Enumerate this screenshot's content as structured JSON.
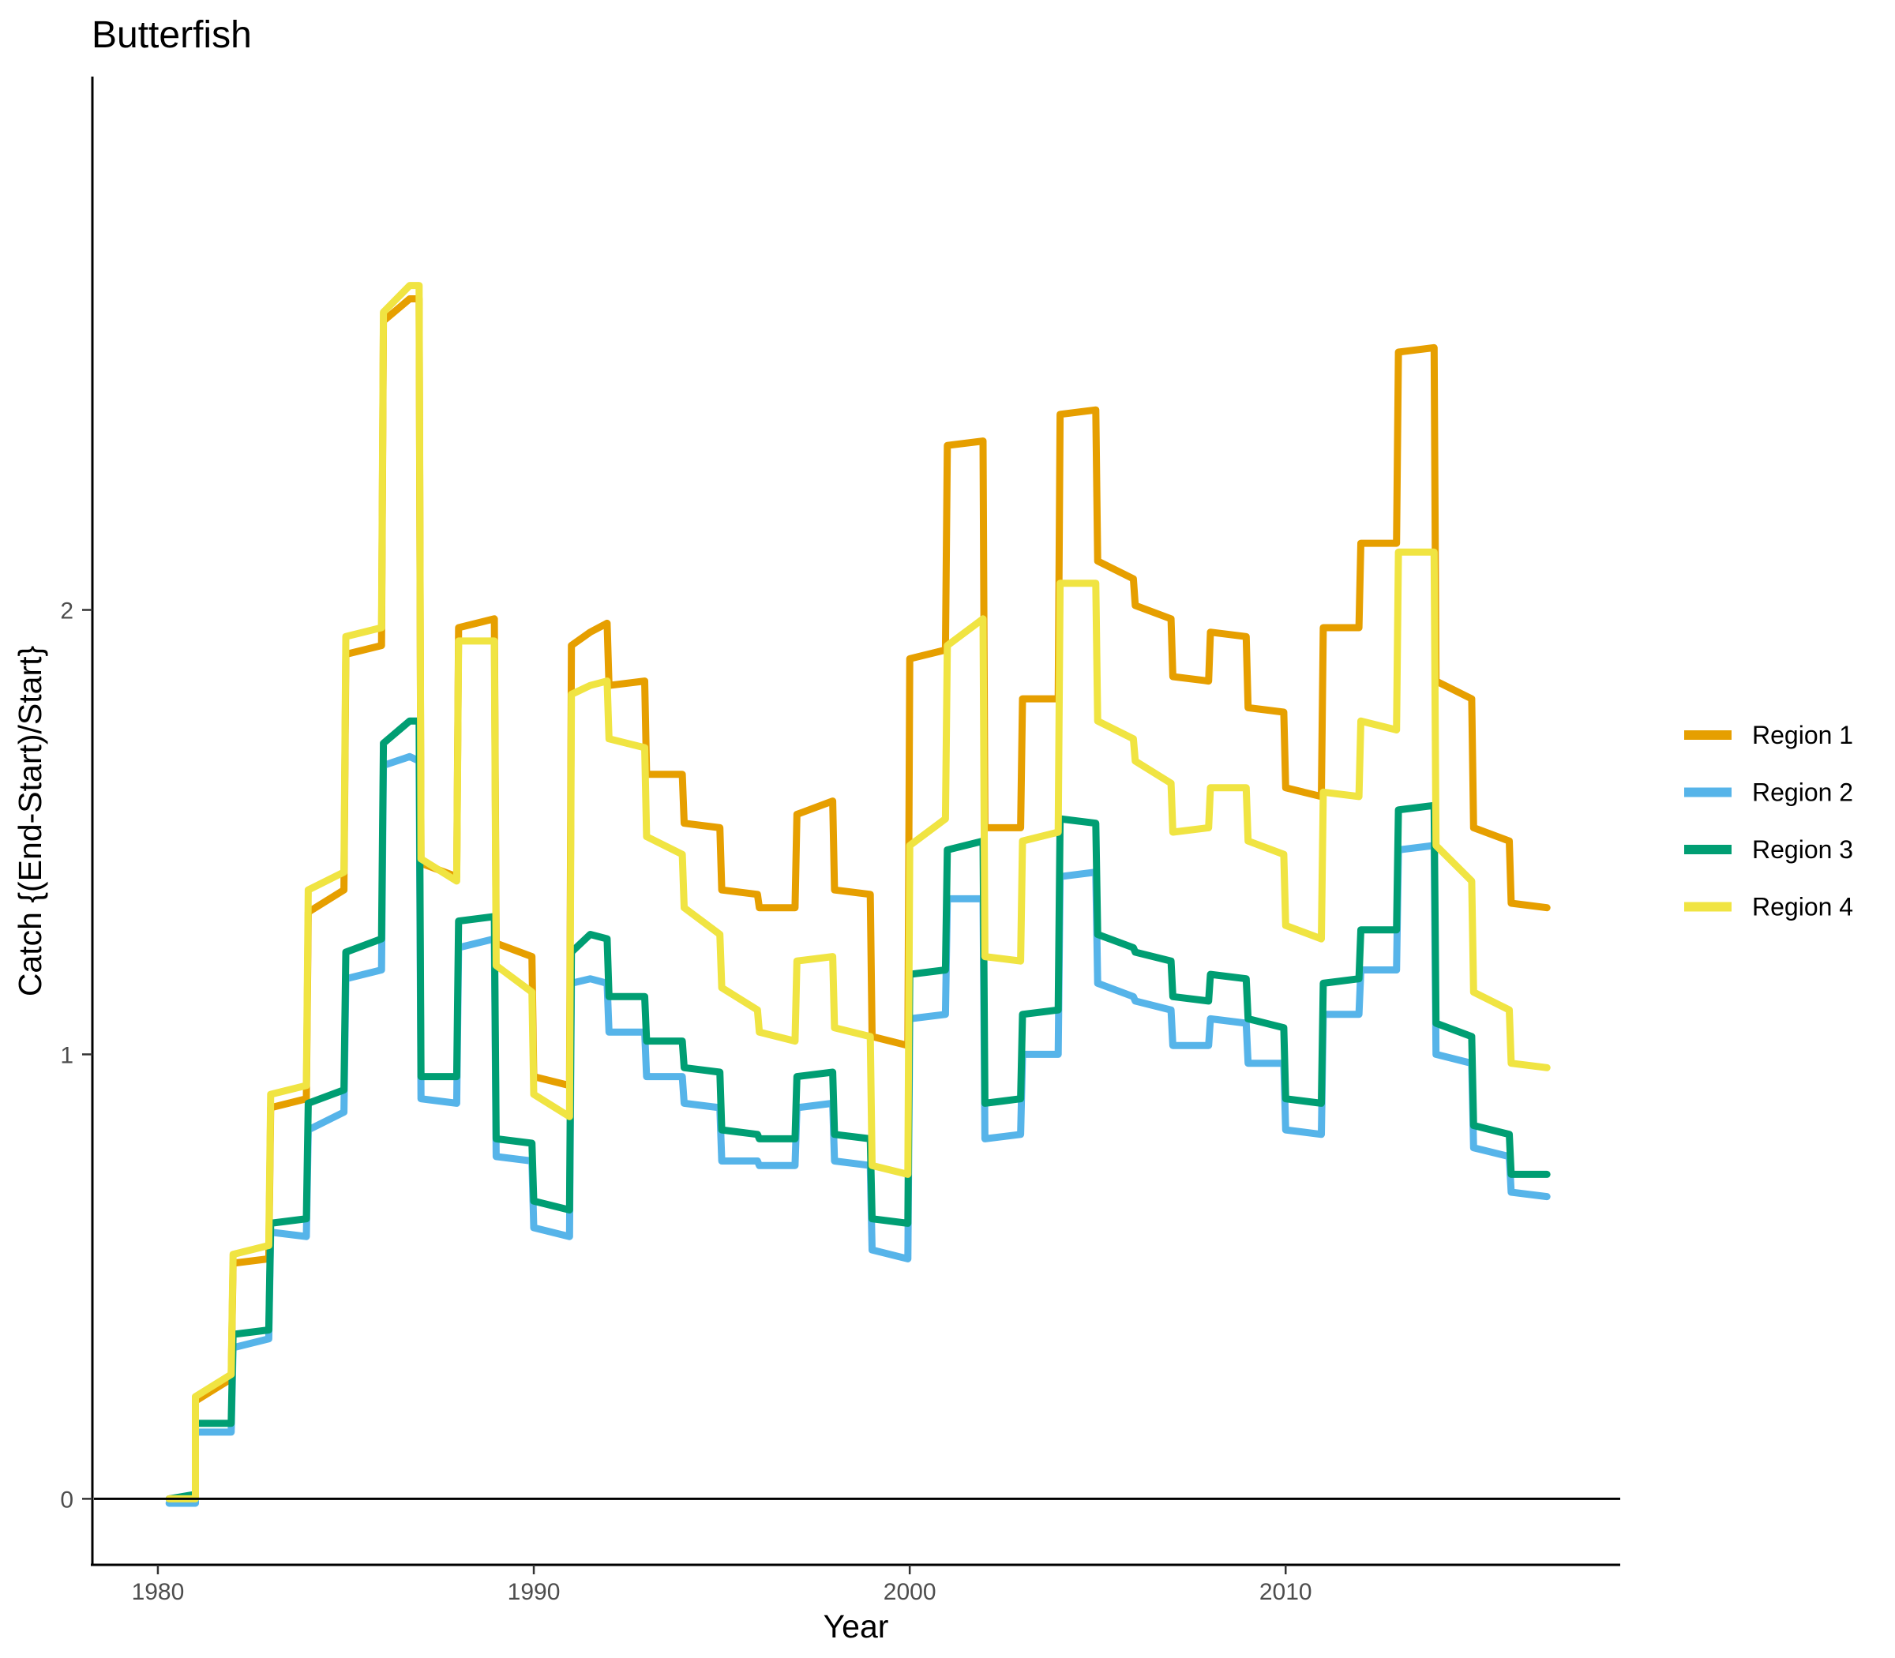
{
  "chart_data": {
    "type": "line",
    "title": "Butterfish",
    "xlabel": "Year",
    "ylabel": "Catch {(End-Start)/Start}",
    "xlim": [
      1978.3,
      2018.9
    ],
    "ylim": [
      -0.145,
      3.2
    ],
    "x_ticks": [
      1980,
      1990,
      2000,
      2010
    ],
    "x_tick_labels": [
      "1980",
      "1990",
      "2000",
      "2010"
    ],
    "y_ticks": [
      0,
      1,
      2
    ],
    "y_tick_labels": [
      "0",
      "1",
      "2"
    ],
    "reference_line_y": 0,
    "grid": false,
    "legend_position": "right",
    "series": [
      {
        "name": "Region 1",
        "color": "#E69F00",
        "points": [
          [
            1980.3,
            0.0
          ],
          [
            1981.0,
            0.0
          ],
          [
            1981.0,
            0.22
          ],
          [
            1981.95,
            0.27
          ],
          [
            1982.0,
            0.53
          ],
          [
            1982.95,
            0.54
          ],
          [
            1983.0,
            0.88
          ],
          [
            1983.95,
            0.9
          ],
          [
            1984.0,
            1.32
          ],
          [
            1984.95,
            1.37
          ],
          [
            1985.0,
            1.9
          ],
          [
            1985.95,
            1.92
          ],
          [
            1986.0,
            2.65
          ],
          [
            1986.7,
            2.7
          ],
          [
            1986.95,
            2.7
          ],
          [
            1987.0,
            1.43
          ],
          [
            1987.95,
            1.4
          ],
          [
            1988.0,
            1.96
          ],
          [
            1988.95,
            1.98
          ],
          [
            1989.0,
            1.25
          ],
          [
            1989.95,
            1.22
          ],
          [
            1990.0,
            0.95
          ],
          [
            1990.95,
            0.93
          ],
          [
            1991.0,
            1.92
          ],
          [
            1991.5,
            1.95
          ],
          [
            1991.95,
            1.97
          ],
          [
            1992.0,
            1.83
          ],
          [
            1992.95,
            1.84
          ],
          [
            1993.0,
            1.63
          ],
          [
            1993.95,
            1.63
          ],
          [
            1994.0,
            1.52
          ],
          [
            1994.95,
            1.51
          ],
          [
            1995.0,
            1.37
          ],
          [
            1995.95,
            1.36
          ],
          [
            1996.0,
            1.33
          ],
          [
            1996.95,
            1.33
          ],
          [
            1997.0,
            1.54
          ],
          [
            1997.95,
            1.57
          ],
          [
            1998.0,
            1.37
          ],
          [
            1998.95,
            1.36
          ],
          [
            1999.0,
            1.04
          ],
          [
            1999.95,
            1.02
          ],
          [
            2000.0,
            1.89
          ],
          [
            2000.95,
            1.91
          ],
          [
            2001.0,
            2.37
          ],
          [
            2001.95,
            2.38
          ],
          [
            2002.0,
            1.51
          ],
          [
            2002.95,
            1.51
          ],
          [
            2003.0,
            1.8
          ],
          [
            2003.95,
            1.8
          ],
          [
            2004.0,
            2.44
          ],
          [
            2004.95,
            2.45
          ],
          [
            2005.0,
            2.11
          ],
          [
            2005.95,
            2.07
          ],
          [
            2006.0,
            2.01
          ],
          [
            2006.95,
            1.98
          ],
          [
            2007.0,
            1.85
          ],
          [
            2007.95,
            1.84
          ],
          [
            2008.0,
            1.95
          ],
          [
            2008.95,
            1.94
          ],
          [
            2009.0,
            1.78
          ],
          [
            2009.95,
            1.77
          ],
          [
            2010.0,
            1.6
          ],
          [
            2010.95,
            1.58
          ],
          [
            2011.0,
            1.96
          ],
          [
            2011.95,
            1.96
          ],
          [
            2012.0,
            2.15
          ],
          [
            2012.95,
            2.15
          ],
          [
            2013.0,
            2.58
          ],
          [
            2013.95,
            2.59
          ],
          [
            2014.0,
            1.84
          ],
          [
            2014.95,
            1.8
          ],
          [
            2015.0,
            1.51
          ],
          [
            2015.95,
            1.48
          ],
          [
            2016.0,
            1.34
          ],
          [
            2016.95,
            1.33
          ]
        ]
      },
      {
        "name": "Region 2",
        "color": "#56B4E9",
        "points": [
          [
            1980.3,
            -0.01
          ],
          [
            1981.0,
            -0.01
          ],
          [
            1981.0,
            0.15
          ],
          [
            1981.95,
            0.15
          ],
          [
            1982.0,
            0.34
          ],
          [
            1982.95,
            0.36
          ],
          [
            1983.0,
            0.6
          ],
          [
            1983.95,
            0.59
          ],
          [
            1984.0,
            0.83
          ],
          [
            1984.95,
            0.87
          ],
          [
            1985.0,
            1.17
          ],
          [
            1985.95,
            1.19
          ],
          [
            1986.0,
            1.65
          ],
          [
            1986.7,
            1.67
          ],
          [
            1986.95,
            1.66
          ],
          [
            1987.0,
            0.9
          ],
          [
            1987.95,
            0.89
          ],
          [
            1988.0,
            1.24
          ],
          [
            1988.95,
            1.26
          ],
          [
            1989.0,
            0.77
          ],
          [
            1989.95,
            0.76
          ],
          [
            1990.0,
            0.61
          ],
          [
            1990.95,
            0.59
          ],
          [
            1991.0,
            1.16
          ],
          [
            1991.5,
            1.17
          ],
          [
            1991.95,
            1.16
          ],
          [
            1992.0,
            1.05
          ],
          [
            1992.95,
            1.05
          ],
          [
            1993.0,
            0.95
          ],
          [
            1993.95,
            0.95
          ],
          [
            1994.0,
            0.89
          ],
          [
            1994.95,
            0.88
          ],
          [
            1995.0,
            0.76
          ],
          [
            1995.95,
            0.76
          ],
          [
            1996.0,
            0.75
          ],
          [
            1996.95,
            0.75
          ],
          [
            1997.0,
            0.88
          ],
          [
            1997.95,
            0.89
          ],
          [
            1998.0,
            0.76
          ],
          [
            1998.95,
            0.75
          ],
          [
            1999.0,
            0.56
          ],
          [
            1999.95,
            0.54
          ],
          [
            2000.0,
            1.08
          ],
          [
            2000.95,
            1.09
          ],
          [
            2001.0,
            1.35
          ],
          [
            2001.95,
            1.35
          ],
          [
            2002.0,
            0.81
          ],
          [
            2002.95,
            0.82
          ],
          [
            2003.0,
            1.0
          ],
          [
            2003.95,
            1.0
          ],
          [
            2004.0,
            1.4
          ],
          [
            2004.95,
            1.41
          ],
          [
            2005.0,
            1.16
          ],
          [
            2005.95,
            1.13
          ],
          [
            2006.0,
            1.12
          ],
          [
            2006.95,
            1.1
          ],
          [
            2007.0,
            1.02
          ],
          [
            2007.95,
            1.02
          ],
          [
            2008.0,
            1.08
          ],
          [
            2008.95,
            1.07
          ],
          [
            2009.0,
            0.98
          ],
          [
            2009.95,
            0.98
          ],
          [
            2010.0,
            0.83
          ],
          [
            2010.95,
            0.82
          ],
          [
            2011.0,
            1.09
          ],
          [
            2011.95,
            1.09
          ],
          [
            2012.0,
            1.19
          ],
          [
            2012.95,
            1.19
          ],
          [
            2013.0,
            1.46
          ],
          [
            2013.95,
            1.47
          ],
          [
            2014.0,
            1.0
          ],
          [
            2014.95,
            0.98
          ],
          [
            2015.0,
            0.79
          ],
          [
            2015.95,
            0.77
          ],
          [
            2016.0,
            0.69
          ],
          [
            2016.95,
            0.68
          ]
        ]
      },
      {
        "name": "Region 3",
        "color": "#009E73",
        "points": [
          [
            1980.3,
            0.0
          ],
          [
            1981.0,
            0.01
          ],
          [
            1981.0,
            0.17
          ],
          [
            1981.95,
            0.17
          ],
          [
            1982.0,
            0.37
          ],
          [
            1982.95,
            0.38
          ],
          [
            1983.0,
            0.62
          ],
          [
            1983.95,
            0.63
          ],
          [
            1984.0,
            0.89
          ],
          [
            1984.95,
            0.92
          ],
          [
            1985.0,
            1.23
          ],
          [
            1985.95,
            1.26
          ],
          [
            1986.0,
            1.7
          ],
          [
            1986.7,
            1.75
          ],
          [
            1986.95,
            1.75
          ],
          [
            1987.0,
            0.95
          ],
          [
            1987.95,
            0.95
          ],
          [
            1988.0,
            1.3
          ],
          [
            1988.95,
            1.31
          ],
          [
            1989.0,
            0.81
          ],
          [
            1989.95,
            0.8
          ],
          [
            1990.0,
            0.67
          ],
          [
            1990.95,
            0.65
          ],
          [
            1991.0,
            1.23
          ],
          [
            1991.5,
            1.27
          ],
          [
            1991.95,
            1.26
          ],
          [
            1992.0,
            1.13
          ],
          [
            1992.95,
            1.13
          ],
          [
            1993.0,
            1.03
          ],
          [
            1993.95,
            1.03
          ],
          [
            1994.0,
            0.97
          ],
          [
            1994.95,
            0.96
          ],
          [
            1995.0,
            0.83
          ],
          [
            1995.95,
            0.82
          ],
          [
            1996.0,
            0.81
          ],
          [
            1996.95,
            0.81
          ],
          [
            1997.0,
            0.95
          ],
          [
            1997.95,
            0.96
          ],
          [
            1998.0,
            0.82
          ],
          [
            1998.95,
            0.81
          ],
          [
            1999.0,
            0.63
          ],
          [
            1999.95,
            0.62
          ],
          [
            2000.0,
            1.18
          ],
          [
            2000.95,
            1.19
          ],
          [
            2001.0,
            1.46
          ],
          [
            2001.95,
            1.48
          ],
          [
            2002.0,
            0.89
          ],
          [
            2002.95,
            0.9
          ],
          [
            2003.0,
            1.09
          ],
          [
            2003.95,
            1.1
          ],
          [
            2004.0,
            1.53
          ],
          [
            2004.95,
            1.52
          ],
          [
            2005.0,
            1.27
          ],
          [
            2005.95,
            1.24
          ],
          [
            2006.0,
            1.23
          ],
          [
            2006.95,
            1.21
          ],
          [
            2007.0,
            1.13
          ],
          [
            2007.95,
            1.12
          ],
          [
            2008.0,
            1.18
          ],
          [
            2008.95,
            1.17
          ],
          [
            2009.0,
            1.08
          ],
          [
            2009.95,
            1.06
          ],
          [
            2010.0,
            0.9
          ],
          [
            2010.95,
            0.89
          ],
          [
            2011.0,
            1.16
          ],
          [
            2011.95,
            1.17
          ],
          [
            2012.0,
            1.28
          ],
          [
            2012.95,
            1.28
          ],
          [
            2013.0,
            1.55
          ],
          [
            2013.95,
            1.56
          ],
          [
            2014.0,
            1.07
          ],
          [
            2014.95,
            1.04
          ],
          [
            2015.0,
            0.84
          ],
          [
            2015.95,
            0.82
          ],
          [
            2016.0,
            0.73
          ],
          [
            2016.95,
            0.73
          ]
        ]
      },
      {
        "name": "Region 4",
        "color": "#F0E442",
        "points": [
          [
            1980.3,
            0.0
          ],
          [
            1981.0,
            0.0
          ],
          [
            1981.0,
            0.23
          ],
          [
            1981.95,
            0.28
          ],
          [
            1982.0,
            0.55
          ],
          [
            1982.95,
            0.57
          ],
          [
            1983.0,
            0.91
          ],
          [
            1983.95,
            0.93
          ],
          [
            1984.0,
            1.37
          ],
          [
            1984.95,
            1.41
          ],
          [
            1985.0,
            1.94
          ],
          [
            1985.95,
            1.96
          ],
          [
            1986.0,
            2.67
          ],
          [
            1986.7,
            2.73
          ],
          [
            1986.95,
            2.73
          ],
          [
            1987.0,
            1.44
          ],
          [
            1987.95,
            1.39
          ],
          [
            1988.0,
            1.93
          ],
          [
            1988.95,
            1.93
          ],
          [
            1989.0,
            1.2
          ],
          [
            1989.95,
            1.14
          ],
          [
            1990.0,
            0.91
          ],
          [
            1990.95,
            0.86
          ],
          [
            1991.0,
            1.81
          ],
          [
            1991.5,
            1.83
          ],
          [
            1991.95,
            1.84
          ],
          [
            1992.0,
            1.71
          ],
          [
            1992.95,
            1.69
          ],
          [
            1993.0,
            1.49
          ],
          [
            1993.95,
            1.45
          ],
          [
            1994.0,
            1.33
          ],
          [
            1994.95,
            1.27
          ],
          [
            1995.0,
            1.15
          ],
          [
            1995.95,
            1.1
          ],
          [
            1996.0,
            1.05
          ],
          [
            1996.95,
            1.03
          ],
          [
            1997.0,
            1.21
          ],
          [
            1997.95,
            1.22
          ],
          [
            1998.0,
            1.06
          ],
          [
            1998.95,
            1.04
          ],
          [
            1999.0,
            0.75
          ],
          [
            1999.95,
            0.73
          ],
          [
            2000.0,
            1.47
          ],
          [
            2000.95,
            1.53
          ],
          [
            2001.0,
            1.92
          ],
          [
            2001.95,
            1.98
          ],
          [
            2002.0,
            1.22
          ],
          [
            2002.95,
            1.21
          ],
          [
            2003.0,
            1.48
          ],
          [
            2003.95,
            1.5
          ],
          [
            2004.0,
            2.06
          ],
          [
            2004.95,
            2.06
          ],
          [
            2005.0,
            1.75
          ],
          [
            2005.95,
            1.71
          ],
          [
            2006.0,
            1.66
          ],
          [
            2006.95,
            1.61
          ],
          [
            2007.0,
            1.5
          ],
          [
            2007.95,
            1.51
          ],
          [
            2008.0,
            1.6
          ],
          [
            2008.95,
            1.6
          ],
          [
            2009.0,
            1.48
          ],
          [
            2009.95,
            1.45
          ],
          [
            2010.0,
            1.29
          ],
          [
            2010.95,
            1.26
          ],
          [
            2011.0,
            1.59
          ],
          [
            2011.95,
            1.58
          ],
          [
            2012.0,
            1.75
          ],
          [
            2012.95,
            1.73
          ],
          [
            2013.0,
            2.13
          ],
          [
            2013.95,
            2.13
          ],
          [
            2014.0,
            1.47
          ],
          [
            2014.95,
            1.39
          ],
          [
            2015.0,
            1.14
          ],
          [
            2015.95,
            1.1
          ],
          [
            2016.0,
            0.98
          ],
          [
            2016.95,
            0.97
          ]
        ]
      }
    ]
  }
}
